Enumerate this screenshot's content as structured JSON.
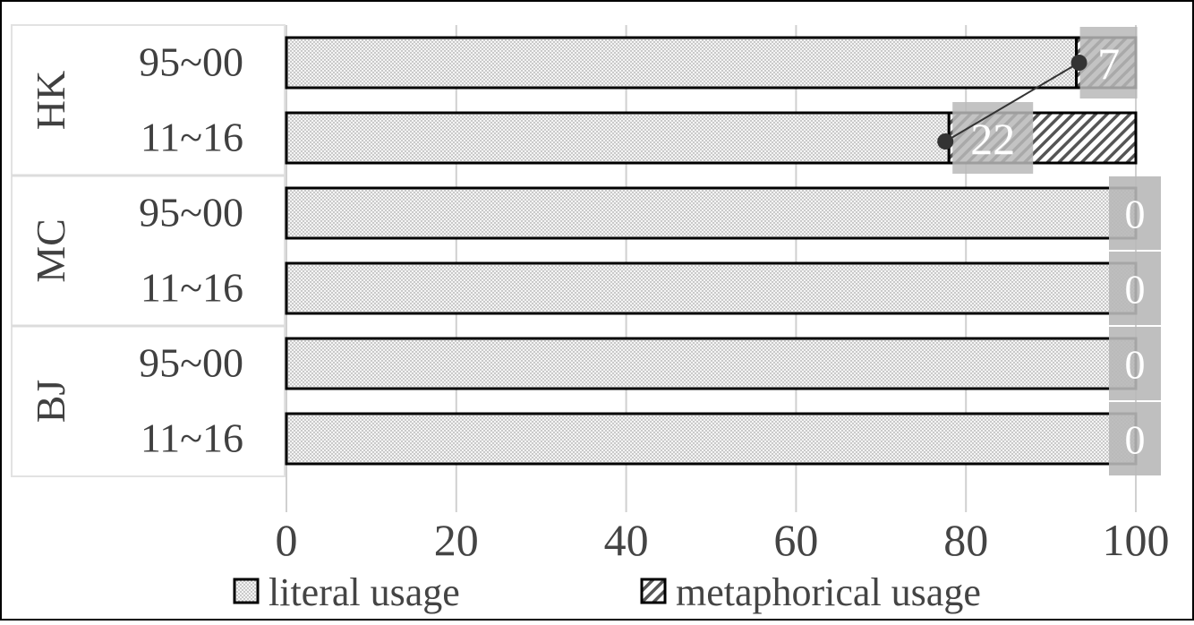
{
  "chart_data": {
    "type": "bar",
    "orientation": "horizontal",
    "stacked": true,
    "groups": [
      {
        "label": "HK",
        "categories": [
          "95~00",
          "11~16"
        ]
      },
      {
        "label": "MC",
        "categories": [
          "95~00",
          "11~16"
        ]
      },
      {
        "label": "BJ",
        "categories": [
          "95~00",
          "11~16"
        ]
      }
    ],
    "series": [
      {
        "name": "literal usage",
        "values": [
          93,
          78,
          100,
          100,
          100,
          100
        ]
      },
      {
        "name": "metaphorical usage",
        "values": [
          7,
          22,
          0,
          0,
          0,
          0
        ]
      }
    ],
    "data_labels": [
      "7",
      "22",
      "0",
      "0",
      "0",
      "0"
    ],
    "x_ticks": [
      "0",
      "20",
      "40",
      "60",
      "80",
      "100"
    ],
    "xlim": [
      0,
      100
    ],
    "grid": true,
    "legend_position": "bottom",
    "colors": {
      "label_box": "#b8b8b8",
      "bar_stroke": "#000000",
      "grid": "#d0d0d0"
    }
  }
}
